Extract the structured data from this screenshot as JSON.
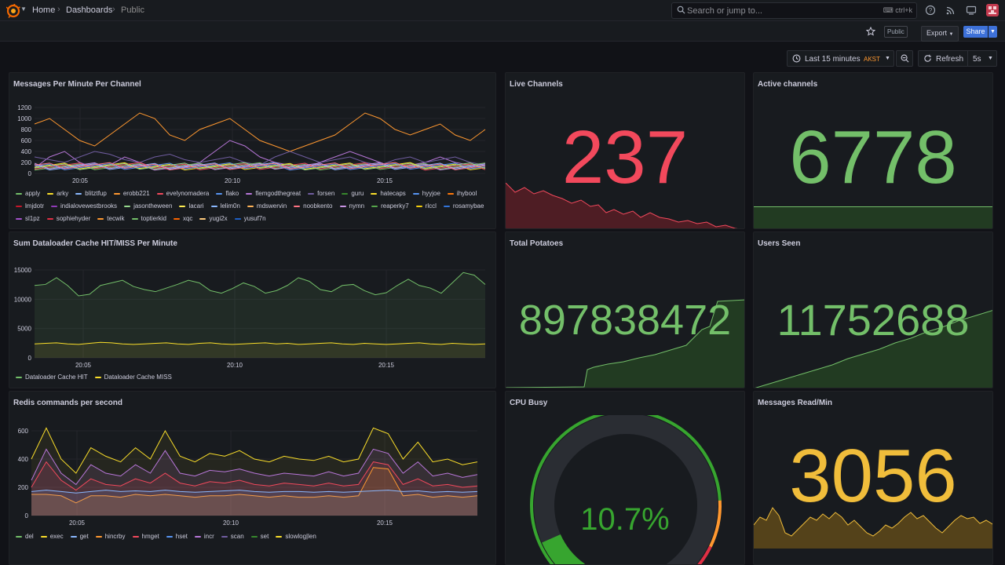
{
  "topbar": {
    "breadcrumb": [
      "Home",
      "Dashboards",
      "Public"
    ],
    "search_placeholder": "Search or jump to...",
    "search_shortcut": "ctrl+k",
    "icons": [
      "help-icon",
      "rss-icon",
      "tv-icon"
    ]
  },
  "subbar": {
    "public_badge": "Public",
    "export_label": "Export",
    "share_label": "Share"
  },
  "timebar": {
    "range": "Last 15 minutes",
    "timezone": "AKST",
    "refresh_label": "Refresh",
    "interval": "5s"
  },
  "panels": {
    "messages_per_minute": {
      "title": "Messages Per Minute Per Channel",
      "legend": [
        "apply",
        "arky",
        "blitztfup",
        "erobb221",
        "evelynomadera",
        "flako",
        "flemgodthegreat",
        "forsen",
        "guru",
        "hatecaps",
        "hyyjoe",
        "ihybool",
        "lmjdotr",
        "indialovewestbrooks",
        "jasontheween",
        "lacari",
        "lelim0n",
        "mdswervin",
        "noobkento",
        "nymn",
        "reaperky7",
        "rlccl",
        "rosamybae",
        "sl1pz",
        "sophiehyder",
        "tecwik",
        "toptierkid",
        "xqc",
        "yugi2x",
        "yusuf7n"
      ],
      "legend_colors": [
        "#73bf69",
        "#fade2a",
        "#8ab8ff",
        "#ff9830",
        "#f2495c",
        "#5794f2",
        "#b877d9",
        "#705da0",
        "#37872d",
        "#fade2a",
        "#5794f2",
        "#ff780a",
        "#c4162a",
        "#8f3bb8",
        "#96d98d",
        "#ffee52",
        "#8ab8ff",
        "#ffb357",
        "#ff7383",
        "#ca95e5",
        "#56a64b",
        "#f2cc0c",
        "#3274d9",
        "#a352cc",
        "#e02f44",
        "#ff9830",
        "#73bf69",
        "#fa6400",
        "#ffcb7d",
        "#1f60c4"
      ],
      "x_ticks": [
        "20:05",
        "20:10",
        "20:15"
      ],
      "y_ticks": [
        "0",
        "200",
        "400",
        "600",
        "800",
        "1000",
        "1200"
      ]
    },
    "live_channels": {
      "title": "Live Channels",
      "value": "237",
      "color": "#f2495c"
    },
    "active_channels": {
      "title": "Active channels",
      "value": "6778",
      "color": "#73bf69"
    },
    "dataloader": {
      "title": "Sum Dataloader Cache HIT/MISS Per Minute",
      "legend": [
        "Dataloader Cache HIT",
        "Dataloader Cache MISS"
      ],
      "legend_colors": [
        "#73bf69",
        "#fade2a"
      ],
      "x_ticks": [
        "20:05",
        "20:10",
        "20:15"
      ],
      "y_ticks": [
        "0",
        "5000",
        "10000",
        "15000"
      ]
    },
    "total_potatoes": {
      "title": "Total Potatoes",
      "value": "897838472",
      "color": "#73bf69"
    },
    "users_seen": {
      "title": "Users Seen",
      "value": "11752688",
      "color": "#73bf69"
    },
    "redis": {
      "title": "Redis commands per second",
      "legend": [
        "del",
        "exec",
        "get",
        "hincrby",
        "hmget",
        "hset",
        "incr",
        "scan",
        "set",
        "slowlog|len"
      ],
      "legend_colors": [
        "#73bf69",
        "#fade2a",
        "#8ab8ff",
        "#ff9830",
        "#f2495c",
        "#5794f2",
        "#b877d9",
        "#705da0",
        "#37872d",
        "#fade2a"
      ],
      "x_ticks": [
        "20:05",
        "20:10",
        "20:15"
      ],
      "y_ticks": [
        "0",
        "200",
        "400",
        "600"
      ]
    },
    "cpu_busy": {
      "title": "CPU Busy",
      "value": "10.7%",
      "percent": 10.7,
      "color": "#37a52f"
    },
    "messages_read": {
      "title": "Messages Read/Min",
      "value": "3056",
      "color": "#f0bd3b"
    }
  }
}
